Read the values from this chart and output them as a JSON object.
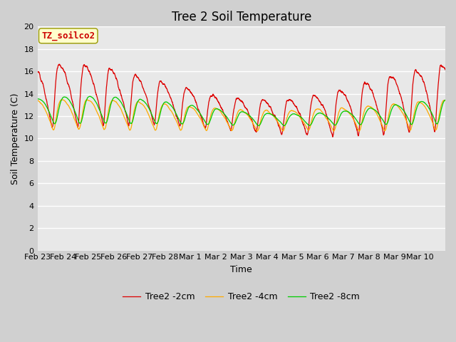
{
  "title": "Tree 2 Soil Temperature",
  "ylabel": "Soil Temperature (C)",
  "xlabel": "Time",
  "annotation": "TZ_soilco2",
  "ylim": [
    0,
    20
  ],
  "legend": [
    "Tree2 -2cm",
    "Tree2 -4cm",
    "Tree2 -8cm"
  ],
  "line_colors": [
    "#dd0000",
    "#ffaa00",
    "#00cc00"
  ],
  "xtick_labels": [
    "Feb 23",
    "Feb 24",
    "Feb 25",
    "Feb 26",
    "Feb 27",
    "Feb 28",
    "Mar 1",
    "Mar 2",
    "Mar 3",
    "Mar 4",
    "Mar 5",
    "Mar 6",
    "Mar 7",
    "Mar 8",
    "Mar 9",
    "Mar 10"
  ],
  "title_fontsize": 12,
  "axis_fontsize": 9,
  "tick_fontsize": 8,
  "annotation_fontsize": 9,
  "annotation_color": "#cc0000",
  "annotation_bg": "#ffffcc",
  "annotation_border": "#999900",
  "fig_bg": "#d0d0d0",
  "plot_bg": "#e8e8e8"
}
